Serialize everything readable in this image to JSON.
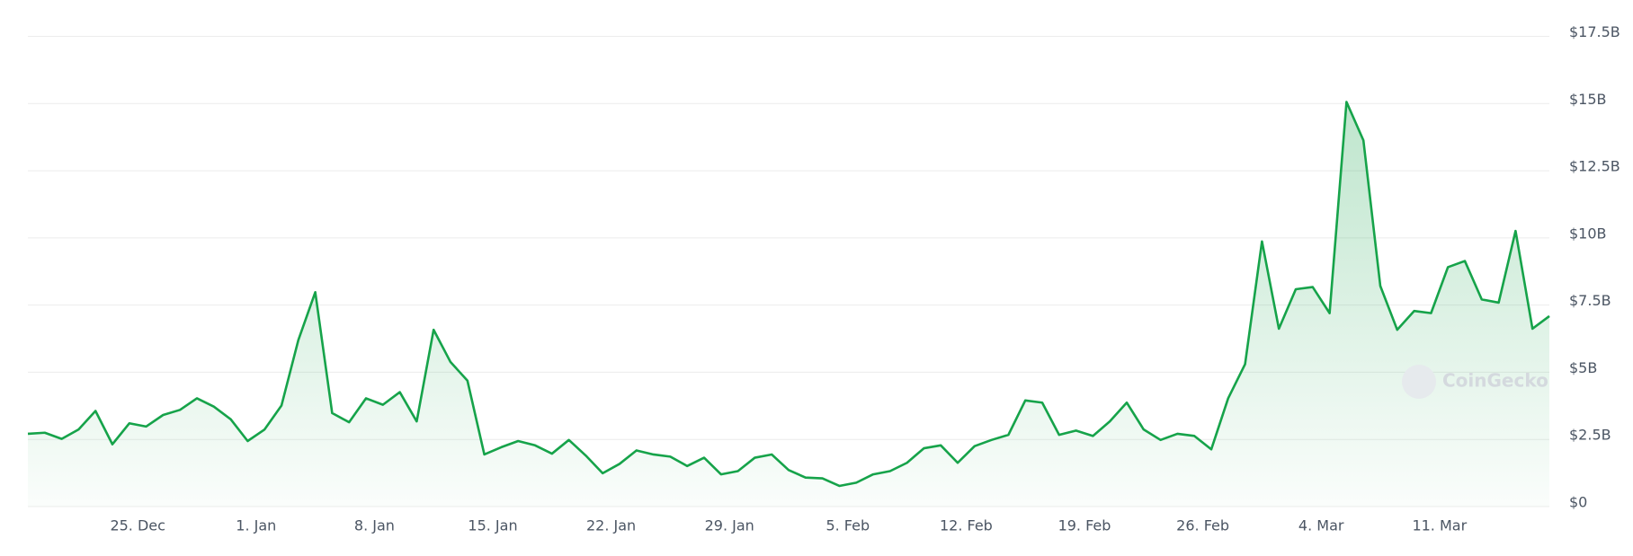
{
  "chart_data": {
    "type": "line",
    "watermark": "CoinGecko",
    "categories": [
      null,
      null,
      null,
      null,
      null,
      null,
      null,
      "25. Dec",
      null,
      null,
      null,
      null,
      null,
      null,
      "1. Jan",
      null,
      null,
      null,
      null,
      null,
      null,
      "8. Jan",
      null,
      null,
      null,
      null,
      null,
      null,
      "15. Jan",
      null,
      null,
      null,
      null,
      null,
      null,
      "22. Jan",
      null,
      null,
      null,
      null,
      null,
      null,
      "29. Jan",
      null,
      null,
      null,
      null,
      null,
      null,
      "5. Feb",
      null,
      null,
      null,
      null,
      null,
      null,
      "12. Feb",
      null,
      null,
      null,
      null,
      null,
      null,
      "19. Feb",
      null,
      null,
      null,
      null,
      null,
      null,
      "26. Feb",
      null,
      null,
      null,
      null,
      null,
      null,
      "4. Mar",
      null,
      null,
      null,
      null,
      null,
      null,
      "11. Mar",
      null,
      null,
      null,
      null,
      null,
      null
    ],
    "series": [
      {
        "color": "#16a34a",
        "values": [
          2.71,
          2.75,
          2.52,
          2.87,
          3.56,
          2.32,
          3.1,
          2.98,
          3.41,
          3.6,
          4.03,
          3.72,
          3.25,
          2.44,
          2.87,
          3.76,
          6.2,
          7.98,
          3.48,
          3.14,
          4.03,
          3.79,
          4.26,
          3.17,
          6.58,
          5.38,
          4.69,
          1.94,
          2.21,
          2.44,
          2.28,
          1.97,
          2.48,
          1.9,
          1.24,
          1.59,
          2.09,
          1.94,
          1.86,
          1.51,
          1.82,
          1.2,
          1.32,
          1.82,
          1.94,
          1.36,
          1.08,
          1.05,
          0.77,
          0.89,
          1.2,
          1.32,
          1.63,
          2.17,
          2.28,
          1.63,
          2.25,
          2.48,
          2.67,
          3.95,
          3.87,
          2.67,
          2.83,
          2.63,
          3.17,
          3.87,
          2.87,
          2.48,
          2.71,
          2.63,
          2.13,
          4.03,
          5.3,
          9.87,
          6.62,
          8.09,
          8.17,
          7.2,
          15.06,
          13.63,
          8.21,
          6.58,
          7.28,
          7.2,
          8.91,
          9.14,
          7.71,
          7.59,
          10.26,
          6.62,
          7.09
        ]
      }
    ],
    "ylim": [
      0,
      17.5
    ],
    "yticks": [
      {
        "value": 0,
        "label": "$0"
      },
      {
        "value": 2.5,
        "label": "$2.5B"
      },
      {
        "value": 5,
        "label": "$5B"
      },
      {
        "value": 7.5,
        "label": "$7.5B"
      },
      {
        "value": 10,
        "label": "$10B"
      },
      {
        "value": 12.5,
        "label": "$12.5B"
      },
      {
        "value": 15,
        "label": "$15B"
      },
      {
        "value": 17.5,
        "label": "$17.5B"
      }
    ],
    "grid": true
  }
}
